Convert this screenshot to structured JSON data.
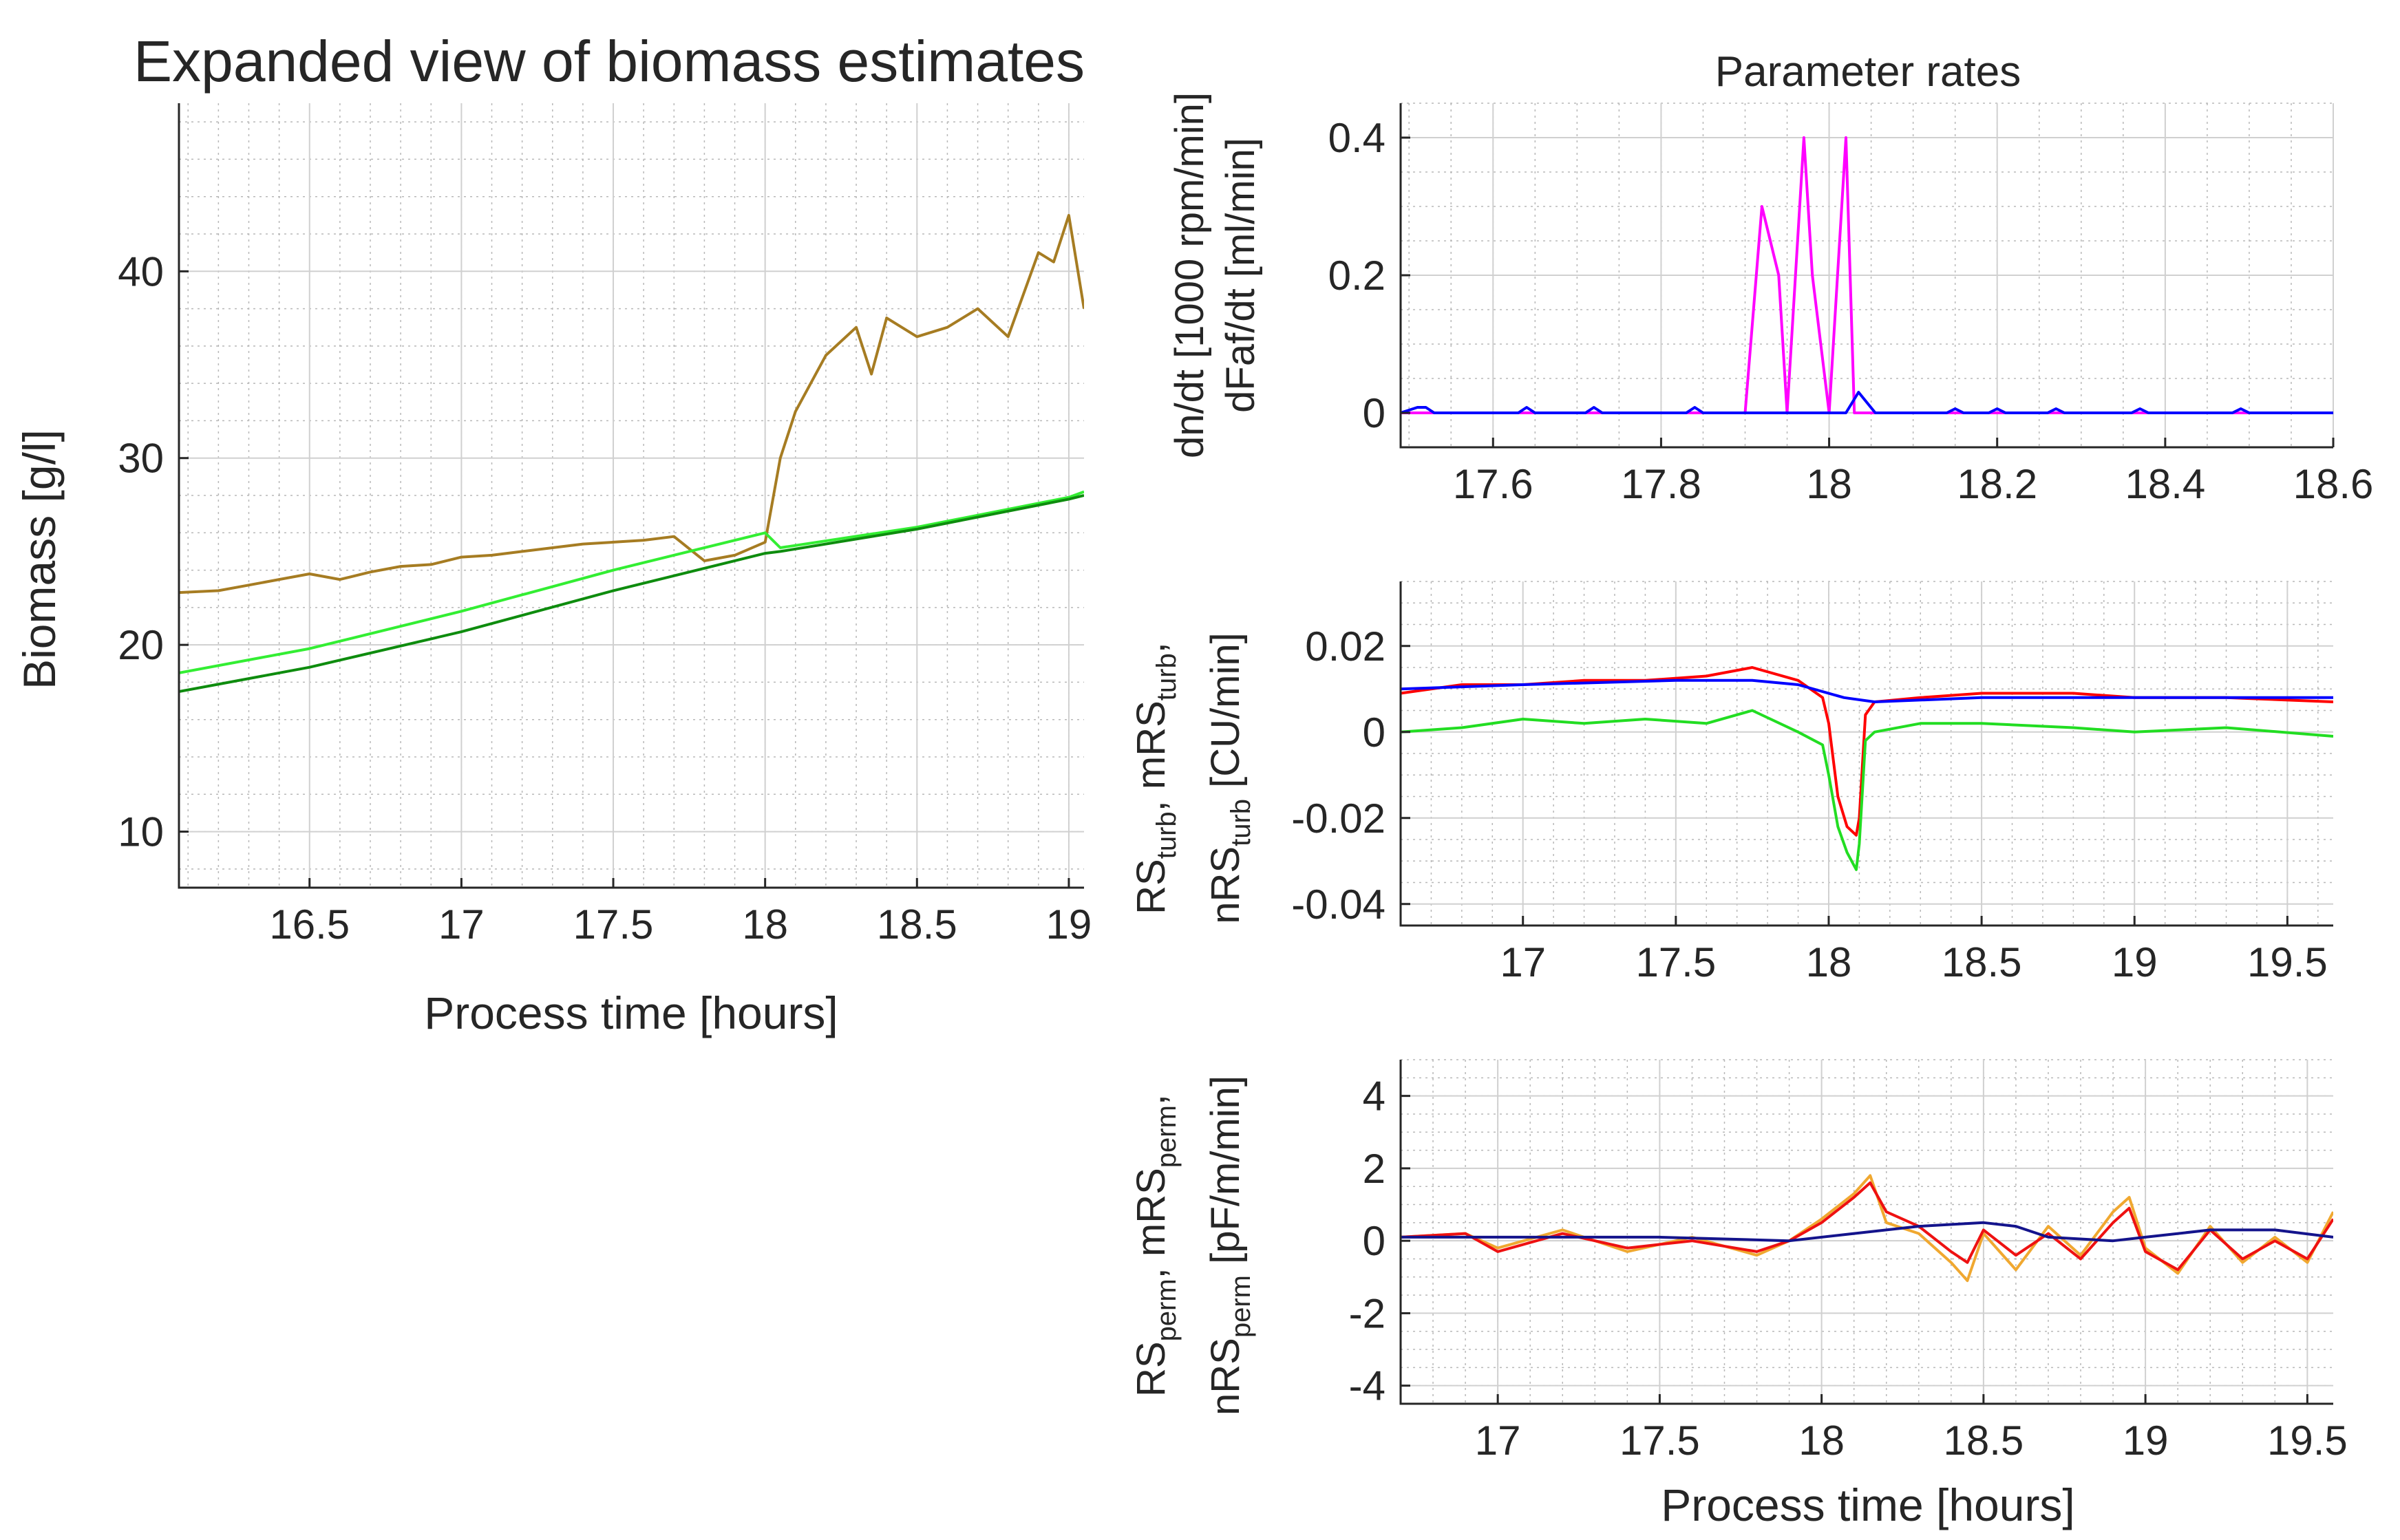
{
  "chart_data": [
    {
      "type": "line",
      "title": "Expanded view of biomass estimates",
      "xlabel": "Process time [hours]",
      "ylabel": "Biomass [g/l]",
      "xlim": [
        16.07,
        19.05
      ],
      "ylim": [
        7,
        49
      ],
      "xticks": [
        16.5,
        17,
        17.5,
        18,
        18.5,
        19
      ],
      "xtick_labels": [
        "16.5",
        "17",
        "17.5",
        "18",
        "18.5",
        "19"
      ],
      "yticks": [
        10,
        20,
        30,
        40
      ],
      "ytick_labels": [
        "10",
        "20",
        "30",
        "40"
      ],
      "grid": true,
      "series": [
        {
          "name": "brown",
          "color": "#a67c22",
          "x": [
            16.07,
            16.2,
            16.3,
            16.4,
            16.5,
            16.6,
            16.7,
            16.8,
            16.9,
            17.0,
            17.1,
            17.2,
            17.3,
            17.4,
            17.5,
            17.6,
            17.7,
            17.8,
            17.9,
            18.0,
            18.05,
            18.1,
            18.2,
            18.3,
            18.35,
            18.4,
            18.5,
            18.6,
            18.7,
            18.8,
            18.9,
            18.95,
            19.0,
            19.05
          ],
          "y": [
            22.8,
            22.9,
            23.2,
            23.5,
            23.8,
            23.5,
            23.9,
            24.2,
            24.3,
            24.7,
            24.8,
            25.0,
            25.2,
            25.4,
            25.5,
            25.6,
            25.8,
            24.5,
            24.8,
            25.5,
            30.0,
            32.5,
            35.5,
            37.0,
            34.5,
            37.5,
            36.5,
            37.0,
            38.0,
            36.5,
            41.0,
            40.5,
            43.0,
            38.0
          ]
        },
        {
          "name": "light green",
          "color": "#33ee33",
          "x": [
            16.07,
            16.5,
            17.0,
            17.5,
            18.0,
            18.05,
            18.5,
            19.0,
            19.05
          ],
          "y": [
            18.5,
            19.8,
            21.8,
            24.0,
            26.0,
            25.2,
            26.3,
            27.9,
            28.2
          ]
        },
        {
          "name": "dark green",
          "color": "#0e8c0e",
          "x": [
            16.07,
            16.5,
            17.0,
            17.5,
            18.0,
            18.05,
            18.5,
            19.0,
            19.05
          ],
          "y": [
            17.5,
            18.8,
            20.7,
            22.9,
            24.9,
            25.0,
            26.2,
            27.8,
            28.0
          ]
        }
      ]
    },
    {
      "type": "line",
      "title": "Parameter rates",
      "xlabel": "",
      "ylabel_lines": [
        "dn/dt [1000 rpm/min]",
        "dFaf/dt [ml/min]"
      ],
      "xlim": [
        17.49,
        18.6
      ],
      "ylim": [
        -0.05,
        0.45
      ],
      "xticks": [
        17.6,
        17.8,
        18,
        18.2,
        18.4,
        18.6
      ],
      "xtick_labels": [
        "17.6",
        "17.8",
        "18",
        "18.2",
        "18.4",
        "18.6"
      ],
      "yticks": [
        0,
        0.2,
        0.4
      ],
      "ytick_labels": [
        "0",
        "0.2",
        "0.4"
      ],
      "grid": true,
      "series": [
        {
          "name": "magenta",
          "color": "#ff00ff",
          "x": [
            17.49,
            17.9,
            17.92,
            17.94,
            17.95,
            17.96,
            17.97,
            17.98,
            17.99,
            18.0,
            18.01,
            18.02,
            18.03,
            18.6
          ],
          "y": [
            0,
            0,
            0.3,
            0.2,
            0,
            0.2,
            0.4,
            0.2,
            0.1,
            0,
            0.2,
            0.4,
            0,
            0
          ]
        },
        {
          "name": "blue",
          "color": "#0000ff",
          "x": [
            17.49,
            17.51,
            17.52,
            17.53,
            17.63,
            17.64,
            17.65,
            17.71,
            17.72,
            17.73,
            17.83,
            17.84,
            17.85,
            18.02,
            18.035,
            18.055,
            18.14,
            18.15,
            18.16,
            18.19,
            18.2,
            18.21,
            18.26,
            18.27,
            18.28,
            18.36,
            18.37,
            18.38,
            18.48,
            18.49,
            18.5,
            18.6
          ],
          "y": [
            0,
            0.008,
            0.008,
            0,
            0,
            0.008,
            0,
            0,
            0.008,
            0,
            0,
            0.008,
            0,
            0,
            0.03,
            0,
            0,
            0.006,
            0,
            0,
            0.006,
            0,
            0,
            0.006,
            0,
            0,
            0.006,
            0,
            0,
            0.006,
            0,
            0
          ]
        }
      ]
    },
    {
      "type": "line",
      "title": "",
      "xlabel": "",
      "xlim": [
        16.6,
        19.65
      ],
      "ylim": [
        -0.045,
        0.035
      ],
      "xticks": [
        17,
        17.5,
        18,
        18.5,
        19,
        19.5
      ],
      "xtick_labels": [
        "17",
        "17.5",
        "18",
        "18.5",
        "19",
        "19.5"
      ],
      "yticks": [
        -0.04,
        -0.02,
        0,
        0.02
      ],
      "ytick_labels": [
        "-0.04",
        "-0.02",
        "0",
        "0.02"
      ],
      "grid": true,
      "series": [
        {
          "name": "red",
          "color": "#ff0000",
          "x": [
            16.6,
            16.8,
            17.0,
            17.2,
            17.4,
            17.6,
            17.75,
            17.9,
            17.98,
            18.0,
            18.03,
            18.06,
            18.09,
            18.1,
            18.12,
            18.15,
            18.3,
            18.5,
            18.8,
            19.0,
            19.3,
            19.65
          ],
          "y": [
            0.009,
            0.011,
            0.011,
            0.012,
            0.012,
            0.013,
            0.015,
            0.012,
            0.008,
            0.002,
            -0.015,
            -0.022,
            -0.024,
            -0.02,
            0.004,
            0.007,
            0.008,
            0.009,
            0.009,
            0.008,
            0.008,
            0.007
          ]
        },
        {
          "name": "green",
          "color": "#22dd22",
          "x": [
            16.6,
            16.8,
            17.0,
            17.2,
            17.4,
            17.6,
            17.75,
            17.9,
            17.98,
            18.0,
            18.03,
            18.06,
            18.09,
            18.1,
            18.12,
            18.15,
            18.3,
            18.5,
            18.8,
            19.0,
            19.3,
            19.65
          ],
          "y": [
            0.0,
            0.001,
            0.003,
            0.002,
            0.003,
            0.002,
            0.005,
            0.0,
            -0.003,
            -0.01,
            -0.022,
            -0.028,
            -0.032,
            -0.026,
            -0.002,
            0.0,
            0.002,
            0.002,
            0.001,
            0.0,
            0.001,
            -0.001
          ]
        },
        {
          "name": "blue",
          "color": "#0000ff",
          "x": [
            16.6,
            17.0,
            17.5,
            17.75,
            17.9,
            18.05,
            18.15,
            18.5,
            19.0,
            19.65
          ],
          "y": [
            0.01,
            0.011,
            0.012,
            0.012,
            0.011,
            0.008,
            0.007,
            0.008,
            0.008,
            0.008
          ]
        }
      ]
    },
    {
      "type": "line",
      "title": "",
      "xlabel": "Process time [hours]",
      "xlim": [
        16.7,
        19.58
      ],
      "ylim": [
        -4.5,
        5.0
      ],
      "xticks": [
        17,
        17.5,
        18,
        18.5,
        19,
        19.5
      ],
      "xtick_labels": [
        "17",
        "17.5",
        "18",
        "18.5",
        "19",
        "19.5"
      ],
      "yticks": [
        -4,
        -2,
        0,
        2,
        4
      ],
      "ytick_labels": [
        "-4",
        "-2",
        "0",
        "2",
        "4"
      ],
      "grid": true,
      "series": [
        {
          "name": "orange",
          "color": "#f0a830",
          "x": [
            16.7,
            16.9,
            17.0,
            17.2,
            17.4,
            17.6,
            17.8,
            17.9,
            18.0,
            18.1,
            18.15,
            18.2,
            18.3,
            18.4,
            18.45,
            18.5,
            18.6,
            18.7,
            18.8,
            18.9,
            18.95,
            19.0,
            19.1,
            19.2,
            19.3,
            19.4,
            19.5,
            19.58
          ],
          "y": [
            0.1,
            0.2,
            -0.2,
            0.3,
            -0.3,
            0.1,
            -0.4,
            0.0,
            0.6,
            1.3,
            1.8,
            0.5,
            0.2,
            -0.6,
            -1.1,
            0.2,
            -0.8,
            0.4,
            -0.4,
            0.8,
            1.2,
            -0.2,
            -0.9,
            0.4,
            -0.6,
            0.1,
            -0.6,
            0.8
          ]
        },
        {
          "name": "red",
          "color": "#ee1111",
          "x": [
            16.7,
            16.9,
            17.0,
            17.2,
            17.4,
            17.6,
            17.8,
            17.9,
            18.0,
            18.1,
            18.15,
            18.2,
            18.3,
            18.4,
            18.45,
            18.5,
            18.6,
            18.7,
            18.8,
            18.9,
            18.95,
            19.0,
            19.1,
            19.2,
            19.3,
            19.4,
            19.5,
            19.58
          ],
          "y": [
            0.1,
            0.2,
            -0.3,
            0.2,
            -0.2,
            0.0,
            -0.3,
            0.0,
            0.5,
            1.2,
            1.6,
            0.8,
            0.4,
            -0.3,
            -0.6,
            0.3,
            -0.4,
            0.2,
            -0.5,
            0.5,
            0.9,
            -0.3,
            -0.8,
            0.3,
            -0.5,
            0.0,
            -0.5,
            0.6
          ]
        },
        {
          "name": "dark blue",
          "color": "#14148c",
          "x": [
            16.7,
            17.0,
            17.5,
            17.9,
            18.1,
            18.3,
            18.5,
            18.6,
            18.7,
            18.9,
            19.0,
            19.2,
            19.4,
            19.58
          ],
          "y": [
            0.1,
            0.1,
            0.1,
            0.0,
            0.2,
            0.4,
            0.5,
            0.4,
            0.1,
            0.0,
            0.1,
            0.3,
            0.3,
            0.1
          ]
        }
      ]
    }
  ]
}
